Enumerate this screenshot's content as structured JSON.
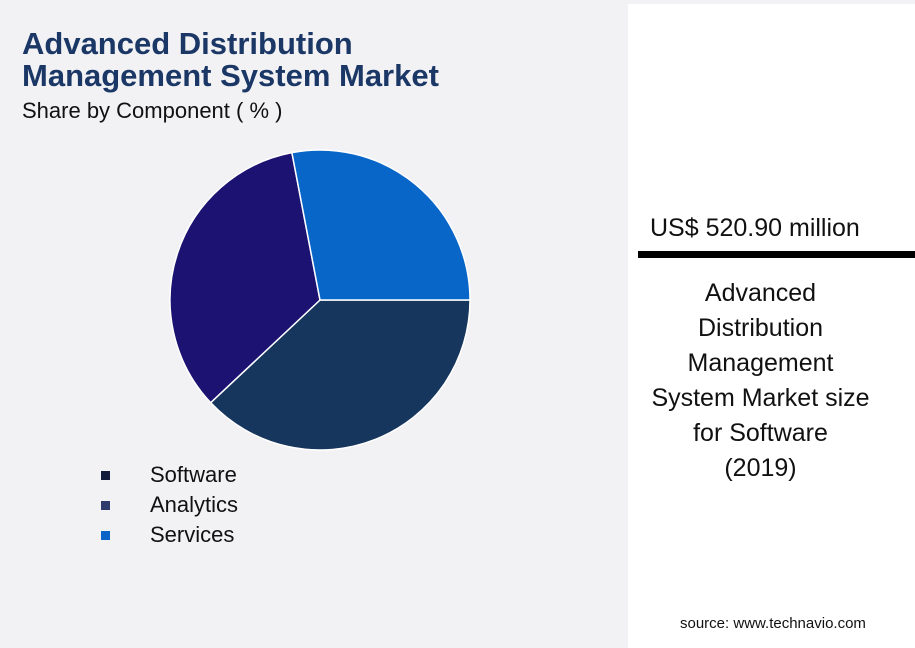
{
  "chart_data": {
    "type": "pie",
    "title": "Advanced Distribution Management System Market",
    "subtitle": "Share by Component ( % )",
    "categories": [
      "Software",
      "Analytics",
      "Services"
    ],
    "values": [
      38,
      34,
      28
    ],
    "colors": [
      "#17365e",
      "#1b1272",
      "#0866c9"
    ],
    "legend_colors": [
      "#121a3c",
      "#2e3a6c",
      "#0a64c8"
    ]
  },
  "panel": {
    "highlight": "US$ 520.90 million",
    "description": [
      "Advanced",
      "Distribution",
      "Management",
      "System Market size",
      "for Software",
      "(2019)"
    ],
    "source": "source: www.technavio.com"
  }
}
